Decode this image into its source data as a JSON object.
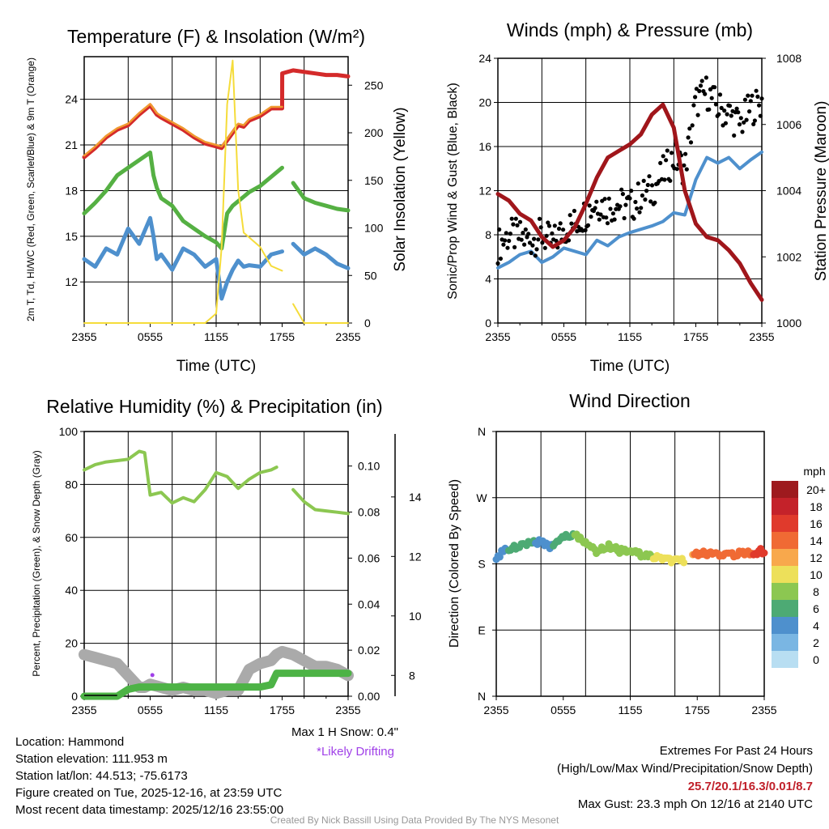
{
  "chart_data": [
    {
      "type": "line",
      "title": "Temperature (F) & Insolation (W/m²)",
      "xlabel": "Time (UTC)",
      "ylabel": "2m T, Td, HI/WC (Red, Green, Scarlet/Blue) & 9m T (Orange)",
      "ylabel_right": "Solar Insolation (Yellow)",
      "x_ticks": [
        "2355",
        "0555",
        "1155",
        "1755",
        "2355"
      ],
      "ylim": [
        9.3,
        26.8
      ],
      "y_ticks": [
        12,
        15,
        18,
        21,
        24
      ],
      "ylim_right": [
        0,
        280
      ],
      "y_ticks_right": [
        0,
        50,
        100,
        150,
        200,
        250
      ],
      "x_hours": [
        0,
        1,
        2,
        3,
        4,
        5,
        6,
        6.3,
        6.6,
        7,
        8,
        9,
        10,
        11,
        12,
        12.5,
        13,
        13.5,
        14,
        14.5,
        15,
        16,
        17,
        18,
        18.01,
        19,
        20,
        21,
        22,
        23,
        24
      ],
      "series": [
        {
          "name": "2m T",
          "color": "#d42a2a",
          "values": [
            20.2,
            20.8,
            21.5,
            22.0,
            22.3,
            23.0,
            23.6,
            23.3,
            23.0,
            22.8,
            22.4,
            22.0,
            21.5,
            21.1,
            20.9,
            20.8,
            21.3,
            21.8,
            22.3,
            22.2,
            22.6,
            22.9,
            23.4,
            23.4,
            25.7,
            25.9,
            25.8,
            25.7,
            25.6,
            25.6,
            25.5
          ]
        },
        {
          "name": "9m T",
          "color": "#f09a30",
          "values": [
            20.3,
            20.9,
            21.6,
            22.1,
            22.4,
            23.1,
            23.7,
            23.4,
            23.1,
            22.9,
            22.5,
            22.1,
            21.6,
            21.2,
            21.0,
            20.9,
            21.4,
            21.9,
            22.4,
            22.3,
            22.7,
            23.0,
            23.5,
            23.5,
            null,
            null,
            null,
            null,
            null,
            null,
            null
          ]
        },
        {
          "name": "2m Td",
          "color": "#55b043",
          "values": [
            16.5,
            17.2,
            18.0,
            19.0,
            19.5,
            20.0,
            20.5,
            19.0,
            18.2,
            17.5,
            17.0,
            16.0,
            15.5,
            15.0,
            14.6,
            14.2,
            16.5,
            17.0,
            17.3,
            17.6,
            17.9,
            18.3,
            18.9,
            19.5,
            null,
            18.5,
            17.5,
            17.2,
            17.0,
            16.8,
            16.7
          ]
        },
        {
          "name": "HI/WC",
          "color": "#4e90cd",
          "values": [
            13.5,
            13.0,
            14.2,
            13.8,
            15.5,
            14.5,
            16.2,
            15.0,
            13.5,
            13.8,
            12.8,
            14.2,
            13.8,
            13.0,
            13.5,
            10.9,
            12.0,
            12.8,
            13.4,
            13.0,
            13.1,
            13.0,
            13.8,
            14.0,
            null,
            14.5,
            13.8,
            14.2,
            13.8,
            13.2,
            12.9
          ]
        },
        {
          "name": "Solar Insolation",
          "color": "#f5dc3a",
          "axis": "right",
          "values": [
            0,
            0,
            0,
            0,
            0,
            0,
            0,
            0,
            0,
            0,
            0,
            0,
            0,
            0,
            10,
            80,
            230,
            276,
            140,
            95,
            90,
            80,
            60,
            55,
            null,
            20,
            0,
            0,
            0,
            0,
            0
          ]
        }
      ]
    },
    {
      "type": "line",
      "title": "Winds (mph) & Pressure (mb)",
      "xlabel": "Time (UTC)",
      "ylabel": "Sonic/Prop Wind & Gust (Blue, Black)",
      "ylabel_right": "Station Pressure (Maroon)",
      "x_ticks": [
        "2355",
        "0555",
        "1155",
        "1755",
        "2355"
      ],
      "ylim": [
        0,
        24
      ],
      "y_ticks": [
        0,
        4,
        8,
        12,
        16,
        20,
        24
      ],
      "ylim_right": [
        1000,
        1008
      ],
      "y_ticks_right": [
        1000,
        1002,
        1004,
        1006,
        1008
      ],
      "x_hours": [
        0,
        1,
        2,
        3,
        4,
        5,
        6,
        7,
        8,
        9,
        10,
        11,
        12,
        13,
        14,
        15,
        16,
        17,
        18,
        19,
        20,
        21,
        22,
        23,
        24
      ],
      "series": [
        {
          "name": "Sonic/Prop Wind",
          "color": "#4e90cd",
          "values": [
            5.0,
            5.5,
            6.2,
            6.5,
            5.5,
            6.0,
            6.8,
            6.5,
            6.2,
            7.5,
            7.0,
            7.8,
            8.2,
            8.5,
            8.8,
            9.2,
            10.0,
            9.8,
            13.0,
            15.0,
            14.5,
            15.0,
            14.0,
            14.8,
            15.5
          ]
        },
        {
          "name": "Gust",
          "color": "#000000",
          "style": "dots",
          "values": [
            7.0,
            8.0,
            7.8,
            7.5,
            8.0,
            7.2,
            8.5,
            9.0,
            10.0,
            11.0,
            10.5,
            10.8,
            10.5,
            11.5,
            12.0,
            13.5,
            15.0,
            14.0,
            20.0,
            21.0,
            19.5,
            19.0,
            18.0,
            19.5,
            20.0
          ]
        },
        {
          "name": "Station Pressure",
          "color": "#a0161b",
          "axis": "right",
          "values": [
            1003.9,
            1003.7,
            1003.3,
            1003.1,
            1002.6,
            1002.3,
            1002.5,
            1002.9,
            1003.6,
            1004.4,
            1005.0,
            1005.2,
            1005.4,
            1005.7,
            1006.3,
            1006.6,
            1005.9,
            1004.0,
            1003.0,
            1002.6,
            1002.5,
            1002.2,
            1001.8,
            1001.2,
            1000.7
          ]
        }
      ]
    },
    {
      "type": "line",
      "title": "Relative Humidity (%) & Precipitation (in)",
      "xlabel": "",
      "ylabel": "Percent, Precipitation (Green), & Snow Depth (Gray)",
      "x_ticks": [
        "2355",
        "0555",
        "1155",
        "1755",
        "2355"
      ],
      "ylim": [
        0,
        100
      ],
      "y_ticks": [
        0,
        20,
        40,
        60,
        80,
        100
      ],
      "y_ticks_precip": [
        "0.00",
        "0.02",
        "0.04",
        "0.06",
        "0.08",
        "0.10"
      ],
      "precip_max": 0.115,
      "y_ticks_snow": [
        8,
        10,
        12,
        14
      ],
      "snow_range": [
        7.3,
        16.2
      ],
      "x_hours": [
        0,
        1,
        2,
        3,
        4,
        5,
        5.5,
        6,
        7,
        8,
        9,
        10,
        11,
        12,
        13,
        14,
        15,
        16,
        17,
        17.5,
        18,
        19,
        20,
        21,
        22,
        23,
        24
      ],
      "series": [
        {
          "name": "Relative Humidity",
          "color": "#8cc751",
          "values": [
            85.5,
            87.5,
            88.5,
            89.0,
            89.5,
            92.5,
            92.0,
            76.0,
            77.0,
            73.0,
            75.0,
            73.5,
            78.0,
            84.5,
            83.0,
            78.5,
            82.0,
            84.5,
            85.5,
            86.5,
            null,
            78.0,
            73.5,
            70.5,
            70.0,
            69.5,
            69.0
          ]
        },
        {
          "name": "Precipitation",
          "color": "#4db346",
          "axis": "precip",
          "values": [
            0.0,
            0.0,
            0.0,
            0.0,
            0.003,
            0.004,
            0.004,
            0.004,
            0.004,
            0.004,
            0.004,
            0.004,
            0.004,
            0.004,
            0.004,
            0.004,
            0.004,
            0.004,
            0.005,
            0.01,
            0.01,
            0.01,
            0.01,
            0.01,
            0.01,
            0.01,
            0.01
          ]
        },
        {
          "name": "Snow Depth",
          "color": "#aaaaaa",
          "axis": "snow",
          "values": [
            8.7,
            8.6,
            8.5,
            8.4,
            8.0,
            7.6,
            7.6,
            7.7,
            7.6,
            7.5,
            7.6,
            7.5,
            7.5,
            7.4,
            7.5,
            7.5,
            8.2,
            8.4,
            8.5,
            8.7,
            8.8,
            8.7,
            8.5,
            8.3,
            8.3,
            8.2,
            8.0
          ]
        }
      ],
      "likely_drifting_hour": 6.2,
      "likely_drifting_pct": 8
    },
    {
      "type": "scatter",
      "title": "Wind Direction",
      "ylabel": "Direction (Colored By Speed)",
      "x_ticks": [
        "2355",
        "0555",
        "1155",
        "1755",
        "2355"
      ],
      "y_ticks": [
        "N",
        "E",
        "S",
        "W",
        "N"
      ],
      "ylim": [
        0,
        360
      ],
      "legend_title": "mph",
      "legend_labels": [
        "20+",
        "18",
        "16",
        "14",
        "12",
        "10",
        "8",
        "6",
        "4",
        "2",
        "0"
      ],
      "legend_colors": [
        "#9e1a1e",
        "#c4222a",
        "#e03a2c",
        "#f06a34",
        "#f8a84c",
        "#ede05a",
        "#8cc751",
        "#4daa74",
        "#4e90cd",
        "#7ab6e3",
        "#b8def2"
      ],
      "x_hours": [
        0,
        1,
        2,
        3,
        4,
        5,
        6,
        7,
        8,
        9,
        10,
        11,
        12,
        13,
        14,
        15,
        16,
        17,
        18,
        19,
        20,
        21,
        22,
        23,
        24
      ],
      "directions": [
        190,
        200,
        205,
        208,
        210,
        202,
        215,
        220,
        210,
        195,
        205,
        198,
        200,
        192,
        189,
        186,
        184,
        184,
        195,
        194,
        192,
        193,
        194,
        195,
        198
      ],
      "speeds": [
        4,
        5,
        6,
        6,
        4,
        5,
        6,
        7,
        8,
        7,
        7,
        8,
        7,
        8,
        9,
        10,
        10,
        11,
        14,
        15,
        14,
        15,
        14,
        15,
        16
      ]
    }
  ],
  "notes": {
    "snow": "Max 1 H Snow: 0.4\"",
    "drifting": "*Likely Drifting"
  },
  "info": {
    "location": "Location: Hammond",
    "elevation": "Station elevation: 111.953 m",
    "latlon": "Station lat/lon: 44.513; -75.6173",
    "created": "Figure created on Tue, 2025-12-16, at 23:59 UTC",
    "recent": "Most recent data timestamp: 2025/12/16 23:55:00",
    "extremes_title": "Extremes For Past 24 Hours",
    "extremes_legend": "(High/Low/Max Wind/Precipitation/Snow Depth)",
    "extremes_values": "25.7/20.1/16.3/0.01/8.7",
    "max_gust": "Max Gust: 23.3 mph On 12/16 at 2140 UTC"
  },
  "credit": "Created By Nick Bassill Using Data Provided By The NYS Mesonet"
}
